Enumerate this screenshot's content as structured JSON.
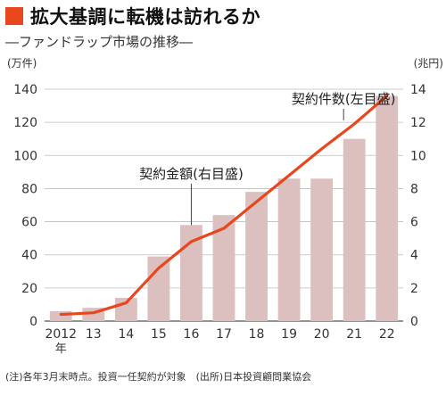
{
  "header": {
    "title": "拡大基調に転機は訪れるか",
    "subtitle": "―ファンドラップ市場の推移―"
  },
  "footnote": "(注)各年3月末時点。投資一任契約が対象　(出所)日本投資顧問業協会",
  "colors": {
    "accent": "#e8461e",
    "bar": "#dcc0c0",
    "line": "#e8461e"
  },
  "chart_data": {
    "type": "bar+line",
    "categories": [
      "2012",
      "13",
      "14",
      "15",
      "16",
      "17",
      "18",
      "19",
      "20",
      "21",
      "22"
    ],
    "year_suffix": "年",
    "left_axis": {
      "unit_label": "(万件)",
      "ylim": [
        0,
        140
      ],
      "ticks": [
        "0",
        "20",
        "40",
        "60",
        "80",
        "100",
        "120",
        "140"
      ]
    },
    "right_axis": {
      "unit_label": "(兆円)",
      "ylim": [
        0,
        14
      ],
      "ticks": [
        "0",
        "2",
        "4",
        "6",
        "8",
        "10",
        "12",
        "14"
      ]
    },
    "series": [
      {
        "name": "契約金額(右目盛)",
        "kind": "bar",
        "axis": "right",
        "values": [
          0.6,
          0.8,
          1.4,
          3.9,
          5.8,
          6.4,
          7.8,
          8.6,
          8.6,
          11.0,
          13.6
        ]
      },
      {
        "name": "契約件数(左目盛)",
        "kind": "line",
        "axis": "left",
        "values": [
          4,
          5,
          11,
          32,
          48,
          56,
          72,
          88,
          104,
          119,
          136
        ]
      }
    ]
  }
}
